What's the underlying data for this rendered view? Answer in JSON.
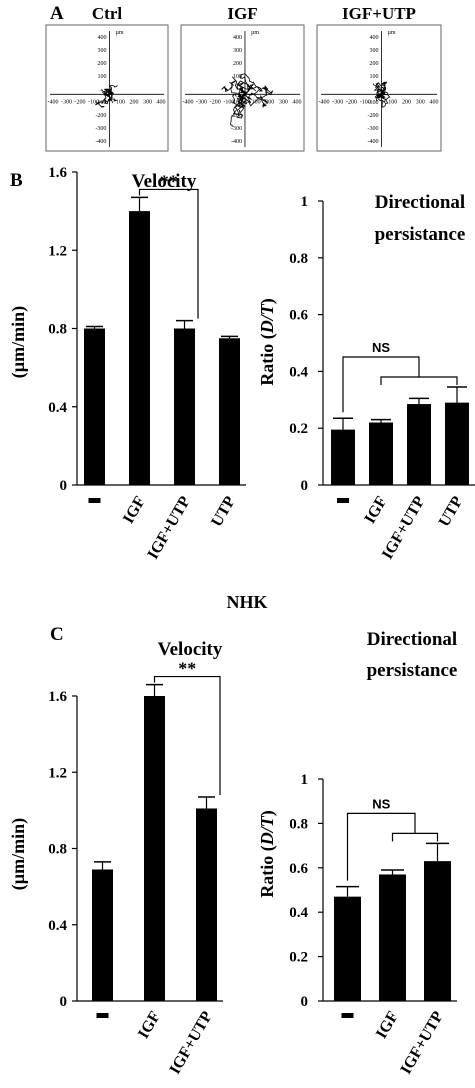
{
  "panels": {
    "A": "A",
    "B": "B",
    "C": "C"
  },
  "section_label": "NHK",
  "track_plots": [
    {
      "title": "Ctrl",
      "unit": "µm",
      "x_ticks": [
        "-400",
        "-300",
        "-200",
        "-100",
        "0",
        "100",
        "200",
        "300",
        "400"
      ],
      "y_ticks": [
        "400",
        "300",
        "200",
        "100",
        "-100",
        "-200",
        "-300",
        "-400"
      ]
    },
    {
      "title": "IGF",
      "unit": "µm",
      "x_ticks": [
        "-400",
        "-300",
        "-200",
        "-100",
        "0",
        "100",
        "200",
        "300",
        "400"
      ],
      "y_ticks": [
        "400",
        "300",
        "200",
        "100",
        "-100",
        "-200",
        "-300",
        "-400"
      ]
    },
    {
      "title": "IGF+UTP",
      "unit": "µm",
      "x_ticks": [
        "-400",
        "-300",
        "-200",
        "-100",
        "0",
        "100",
        "200",
        "300",
        "400"
      ],
      "y_ticks": [
        "400",
        "300",
        "200",
        "100",
        "-100",
        "-200",
        "-300",
        "-400"
      ]
    }
  ],
  "chart_data": [
    {
      "type": "bar",
      "title": [
        "Velocity"
      ],
      "ylabel": "(µm/min)",
      "categories": [
        "-",
        "IGF",
        "IGF+UTP",
        "UTP"
      ],
      "values": [
        0.8,
        1.4,
        0.8,
        0.75
      ],
      "errors": [
        0.01,
        0.07,
        0.04,
        0.01
      ],
      "ylim": [
        0,
        1.6
      ],
      "yticks": [
        "0",
        "0.4",
        "0.8",
        "1.2",
        "1.6"
      ],
      "annotations": [
        {
          "text": "**",
          "between": [
            "IGF",
            "IGF+UTP"
          ]
        }
      ]
    },
    {
      "type": "bar",
      "title": [
        "Directional",
        "persistance"
      ],
      "ylabel": "Ratio (D/T)",
      "categories": [
        "-",
        "IGF",
        "IGF+UTP",
        "UTP"
      ],
      "values": [
        0.195,
        0.22,
        0.285,
        0.29
      ],
      "errors": [
        0.04,
        0.01,
        0.02,
        0.055
      ],
      "ylim": [
        0,
        1
      ],
      "yticks": [
        "0",
        "0.2",
        "0.4",
        "0.6",
        "0.8",
        "1"
      ],
      "annotations": [
        {
          "text": "NS",
          "between": [
            "-",
            "IGF",
            "IGF+UTP",
            "UTP"
          ]
        }
      ]
    },
    {
      "type": "bar",
      "title": [
        "Velocity"
      ],
      "ylabel": "(µm/min)",
      "categories": [
        "-",
        "IGF",
        "IGF+UTP"
      ],
      "values": [
        0.69,
        1.6,
        1.01
      ],
      "errors": [
        0.04,
        0.06,
        0.06
      ],
      "ylim": [
        0,
        1.6
      ],
      "yticks": [
        "0",
        "0.4",
        "0.8",
        "1.2",
        "1.6"
      ],
      "annotations": [
        {
          "text": "**",
          "between": [
            "IGF",
            "IGF+UTP"
          ]
        }
      ]
    },
    {
      "type": "bar",
      "title": [
        "Directional",
        "persistance"
      ],
      "ylabel": "Ratio (D/T)",
      "categories": [
        "-",
        "IGF",
        "IGF+UTP"
      ],
      "values": [
        0.47,
        0.57,
        0.63
      ],
      "errors": [
        0.045,
        0.02,
        0.08
      ],
      "ylim": [
        0,
        1
      ],
      "yticks": [
        "0",
        "0.2",
        "0.4",
        "0.6",
        "0.8",
        "1"
      ],
      "annotations": [
        {
          "text": "NS",
          "between": [
            "-",
            "IGF",
            "IGF+UTP"
          ]
        }
      ]
    }
  ]
}
